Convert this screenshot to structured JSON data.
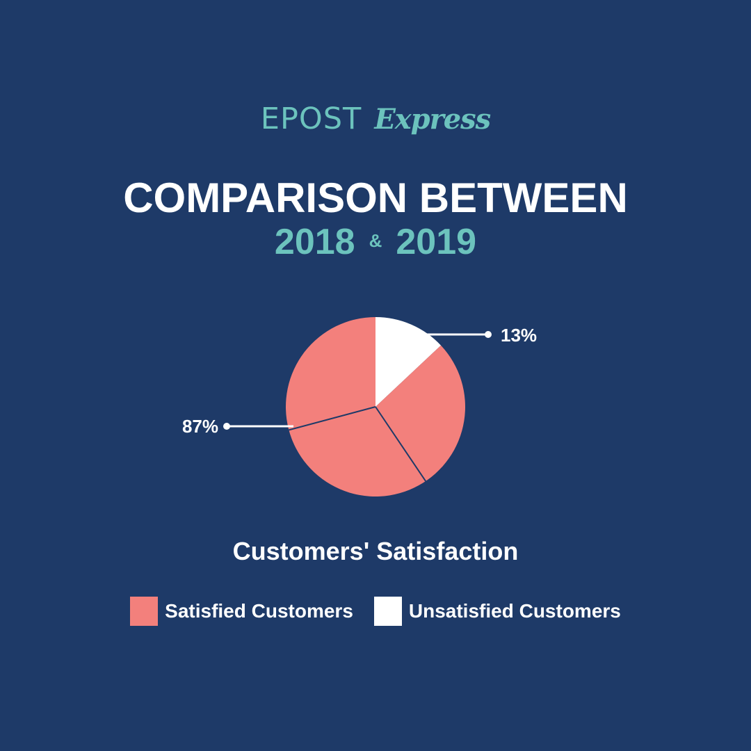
{
  "logo": {
    "word": "EPOST",
    "script": "Express"
  },
  "header": {
    "title": "COMPARISON BETWEEN",
    "year_a": "2018",
    "amp": "&",
    "year_b": "2019"
  },
  "colors": {
    "background": "#1e3a68",
    "accent": "#6cc3bd",
    "satisfied": "#f3807c",
    "unsatisfied": "#ffffff"
  },
  "chart_data": {
    "type": "pie",
    "title": "Customers' Satisfaction",
    "slices": [
      {
        "name": "Unsatisfied Customers",
        "value": 13,
        "label": "13%",
        "color": "#ffffff"
      },
      {
        "name": "Satisfied Customers",
        "value": 87,
        "label": "87%",
        "color": "#f3807c"
      }
    ],
    "legend": [
      {
        "label": "Satisfied Customers",
        "color": "#f3807c"
      },
      {
        "label": "Unsatisfied Customers",
        "color": "#ffffff"
      }
    ],
    "legend_position": "bottom"
  }
}
